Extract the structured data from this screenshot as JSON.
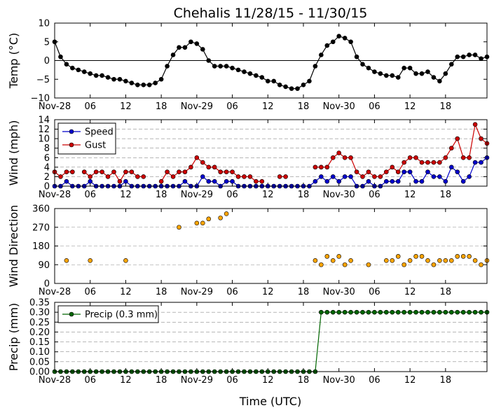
{
  "title": "Chehalis 11/28/15 - 11/30/15",
  "xlabel": "Time (UTC)",
  "chart_data": [
    {
      "type": "line",
      "ylabel": "Temp (°C)",
      "ylim": [
        -10,
        10
      ],
      "yticks": [
        "10",
        "5",
        "0",
        "−5",
        "−10"
      ],
      "grid": false,
      "zero_line": true,
      "x_ticks": [
        "Nov-28",
        "06",
        "12",
        "18",
        "Nov-29",
        "06",
        "12",
        "18",
        "Nov-30",
        "06",
        "12",
        "18"
      ],
      "x_hours_per_point": 1,
      "series": [
        {
          "color": "#000000",
          "values": [
            5,
            1,
            -1,
            -2,
            -2.5,
            -3,
            -3.5,
            -4,
            -4,
            -4.5,
            -5,
            -5,
            -5.5,
            -6,
            -6.5,
            -6.5,
            -6.5,
            -6,
            -5,
            -1.5,
            1.5,
            3.5,
            3.5,
            5,
            4.5,
            3,
            0,
            -1.5,
            -1.5,
            -1.5,
            -2,
            -2.5,
            -3,
            -3.5,
            -4,
            -4.5,
            -5.5,
            -5.5,
            -6.5,
            -7,
            -7.5,
            -7.5,
            -6.5,
            -5.5,
            -1.5,
            1.5,
            4,
            5,
            6.5,
            6,
            5,
            1,
            -1,
            -2,
            -3,
            -3.5,
            -4,
            -4,
            -4.5,
            -2,
            -2,
            -3.5,
            -3.5,
            -3,
            -4.5,
            -5.5,
            -3.5,
            -1,
            1,
            1,
            1.5,
            1.5,
            0.5,
            1
          ]
        }
      ]
    },
    {
      "type": "line",
      "ylabel": "Wind (mph)",
      "ylim": [
        0,
        14
      ],
      "yticks": [
        "14",
        "12",
        "10",
        "8",
        "6",
        "4",
        "2",
        "0"
      ],
      "grid": true,
      "legend": "top-left",
      "x_ticks": [
        "Nov-28",
        "06",
        "12",
        "18",
        "Nov-29",
        "06",
        "12",
        "18",
        "Nov-30",
        "06",
        "12",
        "18"
      ],
      "series": [
        {
          "name": "Speed",
          "color": "#0000cc",
          "values": [
            0,
            0,
            1,
            0,
            0,
            0,
            1,
            0,
            0,
            0,
            0,
            0,
            1,
            0,
            0,
            0,
            0,
            0,
            0,
            0,
            0,
            0,
            1,
            0,
            0,
            2,
            1,
            1,
            0,
            1,
            1,
            0,
            0,
            0,
            0,
            0,
            0,
            0,
            0,
            0,
            0,
            0,
            0,
            0,
            1,
            2,
            1,
            2,
            1,
            2,
            2,
            0,
            0,
            1,
            0,
            0,
            1,
            1,
            1,
            3,
            3,
            1,
            1,
            3,
            2,
            2,
            1,
            4,
            3,
            1,
            2,
            5,
            5,
            6
          ]
        },
        {
          "name": "Gust",
          "color": "#cc0000",
          "values": [
            3,
            2,
            3,
            3,
            null,
            3,
            2,
            3,
            3,
            2,
            3,
            1,
            3,
            3,
            2,
            2,
            null,
            null,
            1,
            3,
            2,
            3,
            3,
            4,
            6,
            5,
            4,
            4,
            3,
            3,
            3,
            2,
            2,
            2,
            1,
            1,
            null,
            null,
            2,
            2,
            null,
            null,
            null,
            null,
            4,
            4,
            4,
            6,
            7,
            6,
            6,
            3,
            2,
            3,
            2,
            2,
            3,
            4,
            3,
            5,
            6,
            6,
            5,
            5,
            5,
            5,
            6,
            8,
            10,
            6,
            6,
            13,
            10,
            9
          ]
        }
      ]
    },
    {
      "type": "scatter",
      "ylabel": "Wind Direction",
      "ylim": [
        0,
        360
      ],
      "yticks": [
        "360",
        "270",
        "180",
        "90",
        "0"
      ],
      "grid": true,
      "x_ticks": [
        "Nov-28",
        "06",
        "12",
        "18",
        "Nov-29",
        "06",
        "12",
        "18",
        "Nov-30",
        "06",
        "12",
        "18"
      ],
      "series": [
        {
          "color": "#ffa500",
          "values": [
            null,
            null,
            110,
            null,
            null,
            null,
            110,
            null,
            null,
            null,
            null,
            null,
            110,
            null,
            null,
            null,
            null,
            null,
            null,
            null,
            null,
            270,
            null,
            null,
            290,
            290,
            310,
            null,
            315,
            335,
            null,
            null,
            null,
            null,
            null,
            null,
            null,
            null,
            null,
            null,
            null,
            null,
            null,
            null,
            110,
            90,
            130,
            110,
            130,
            90,
            110,
            null,
            null,
            90,
            null,
            null,
            110,
            110,
            130,
            90,
            110,
            130,
            130,
            110,
            90,
            110,
            110,
            110,
            130,
            130,
            130,
            110,
            90,
            110
          ]
        }
      ]
    },
    {
      "type": "line",
      "ylabel": "Precip (mm)",
      "ylim": [
        0,
        0.35
      ],
      "yticks": [
        "0.35",
        "0.30",
        "0.25",
        "0.20",
        "0.15",
        "0.10",
        "0.05",
        "0.00"
      ],
      "grid": true,
      "legend": "top-left",
      "x_ticks": [
        "Nov-28",
        "06",
        "12",
        "18",
        "Nov-29",
        "06",
        "12",
        "18",
        "Nov-30",
        "06",
        "12",
        "18"
      ],
      "series": [
        {
          "name": "Precip (0.3 mm)",
          "color": "#006600",
          "values": [
            0,
            0,
            0,
            0,
            0,
            0,
            0,
            0,
            0,
            0,
            0,
            0,
            0,
            0,
            0,
            0,
            0,
            0,
            0,
            0,
            0,
            0,
            0,
            0,
            0,
            0,
            0,
            0,
            0,
            0,
            0,
            0,
            0,
            0,
            0,
            0,
            0,
            0,
            0,
            0,
            0,
            0,
            0,
            0,
            0,
            0.3,
            0.3,
            0.3,
            0.3,
            0.3,
            0.3,
            0.3,
            0.3,
            0.3,
            0.3,
            0.3,
            0.3,
            0.3,
            0.3,
            0.3,
            0.3,
            0.3,
            0.3,
            0.3,
            0.3,
            0.3,
            0.3,
            0.3,
            0.3,
            0.3,
            0.3,
            0.3,
            0.3,
            0.3
          ]
        }
      ]
    }
  ]
}
